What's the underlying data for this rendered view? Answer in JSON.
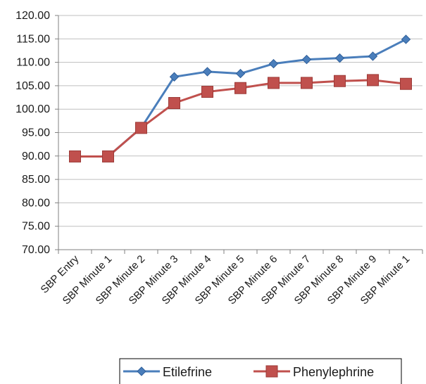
{
  "chart_data": {
    "type": "line",
    "categories": [
      "SBP Entry",
      "SBP Minute 1",
      "SBP Minute 2",
      "SBP Minute 3",
      "SBP Minute 4",
      "SBP Minute 5",
      "SBP Minute 6",
      "SBP Minute 7",
      "SBP Minute 8",
      "SBP Minute 9",
      "SBP Minute 1"
    ],
    "series": [
      {
        "name": "Etilefrine",
        "color": "#4a7ebb",
        "marker": "diamond",
        "values": [
          89.9,
          89.9,
          96.0,
          106.9,
          108.0,
          107.6,
          109.7,
          110.6,
          110.9,
          111.3,
          114.9
        ]
      },
      {
        "name": "Phenylephrine",
        "color": "#c0504d",
        "marker": "square",
        "values": [
          89.9,
          89.9,
          96.0,
          101.3,
          103.7,
          104.5,
          105.6,
          105.6,
          106.0,
          106.2,
          105.4
        ]
      }
    ],
    "ylim": [
      70,
      120
    ],
    "yticks": [
      "70.00",
      "75.00",
      "80.00",
      "85.00",
      "90.00",
      "95.00",
      "100.00",
      "105.00",
      "110.00",
      "115.00",
      "120.00"
    ],
    "grid": true,
    "legend_position": "bottom"
  }
}
